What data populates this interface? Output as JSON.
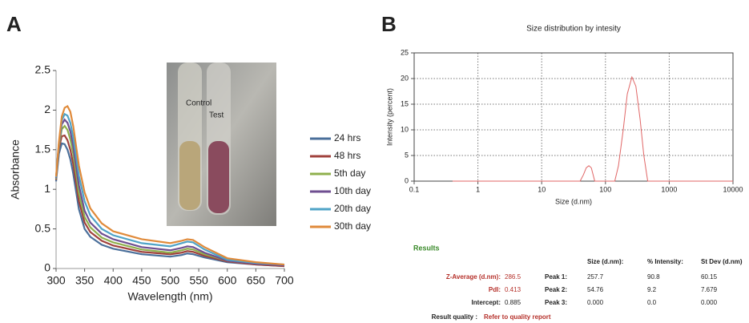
{
  "panel_labels": [
    "A",
    "B"
  ],
  "chart_data": [
    {
      "type": "line",
      "xlabel": "Wavelength (nm)",
      "ylabel": "Absorbance",
      "x": [
        300,
        305,
        310,
        315,
        320,
        325,
        330,
        340,
        350,
        360,
        380,
        400,
        450,
        500,
        520,
        530,
        540,
        560,
        600,
        650,
        700
      ],
      "series": [
        {
          "name": "24 hrs",
          "color": "#4a6f9a",
          "values": [
            1.1,
            1.45,
            1.58,
            1.57,
            1.5,
            1.38,
            1.2,
            0.75,
            0.5,
            0.4,
            0.3,
            0.25,
            0.18,
            0.15,
            0.17,
            0.19,
            0.18,
            0.14,
            0.08,
            0.05,
            0.03
          ]
        },
        {
          "name": "48 hrs",
          "color": "#a0413c",
          "values": [
            1.12,
            1.52,
            1.67,
            1.68,
            1.62,
            1.5,
            1.32,
            0.85,
            0.58,
            0.46,
            0.35,
            0.29,
            0.21,
            0.18,
            0.2,
            0.22,
            0.21,
            0.16,
            0.09,
            0.05,
            0.03
          ]
        },
        {
          "name": "5th day",
          "color": "#8fb04d",
          "values": [
            1.13,
            1.55,
            1.76,
            1.8,
            1.75,
            1.63,
            1.45,
            0.95,
            0.65,
            0.52,
            0.39,
            0.33,
            0.24,
            0.2,
            0.23,
            0.25,
            0.24,
            0.18,
            0.1,
            0.06,
            0.04
          ]
        },
        {
          "name": "10th day",
          "color": "#6f4f91",
          "values": [
            1.14,
            1.57,
            1.82,
            1.88,
            1.84,
            1.73,
            1.55,
            1.05,
            0.73,
            0.58,
            0.44,
            0.37,
            0.27,
            0.23,
            0.26,
            0.28,
            0.27,
            0.2,
            0.1,
            0.06,
            0.04
          ]
        },
        {
          "name": "20th day",
          "color": "#4fa3c7",
          "values": [
            1.15,
            1.58,
            1.87,
            1.95,
            1.93,
            1.84,
            1.66,
            1.17,
            0.85,
            0.67,
            0.5,
            0.42,
            0.32,
            0.28,
            0.32,
            0.34,
            0.33,
            0.24,
            0.11,
            0.07,
            0.05
          ]
        },
        {
          "name": "30th day",
          "color": "#e08a3a",
          "values": [
            1.16,
            1.6,
            1.92,
            2.03,
            2.05,
            1.98,
            1.8,
            1.3,
            0.96,
            0.76,
            0.57,
            0.47,
            0.37,
            0.32,
            0.35,
            0.37,
            0.36,
            0.27,
            0.13,
            0.08,
            0.05
          ]
        }
      ],
      "xlim": [
        300,
        700
      ],
      "xticks": [
        300,
        350,
        400,
        450,
        500,
        550,
        600,
        650,
        700
      ],
      "ylim": [
        0,
        2.5
      ],
      "yticks": [
        0,
        0.5,
        1,
        1.5,
        2,
        2.5
      ],
      "grid": false,
      "legend": "right",
      "annotations": [
        "Control",
        "Test"
      ]
    },
    {
      "type": "line",
      "title": "Size distribution by intesity",
      "xlabel": "Size (d.nm)",
      "ylabel": "Intensity (percent)",
      "xscale": "log",
      "x": [
        0.4,
        40,
        45,
        50,
        55,
        60,
        68,
        140,
        160,
        190,
        220,
        260,
        300,
        350,
        400,
        460,
        10000
      ],
      "series": [
        {
          "color": "#e06666",
          "values": [
            0,
            0,
            1.2,
            2.6,
            3,
            2.6,
            0,
            0,
            3,
            10,
            17,
            20.3,
            18.5,
            12,
            5,
            0,
            0
          ]
        }
      ],
      "xlim": [
        0.1,
        10000
      ],
      "xticks": [
        0.1,
        1,
        10,
        100,
        1000,
        10000
      ],
      "ylim": [
        0,
        25
      ],
      "yticks": [
        0,
        5,
        10,
        15,
        20,
        25
      ],
      "grid": true
    }
  ],
  "results": {
    "heading": "Results",
    "header": [
      "Size (d.nm):",
      "% Intensity:",
      "St Dev (d.nm)"
    ],
    "rows": [
      [
        "Z-Average (d.nm):",
        "286.5",
        "Peak 1:",
        "257.7",
        "90.8",
        "60.15"
      ],
      [
        "PdI:",
        "0.413",
        "Peak 2:",
        "54.76",
        "9.2",
        "7.679"
      ],
      [
        "Intercept:",
        "0.885",
        "Peak 3:",
        "0.000",
        "0.0",
        "0.000"
      ]
    ],
    "quality": [
      "Result quality :",
      "Refer to quality report"
    ]
  }
}
